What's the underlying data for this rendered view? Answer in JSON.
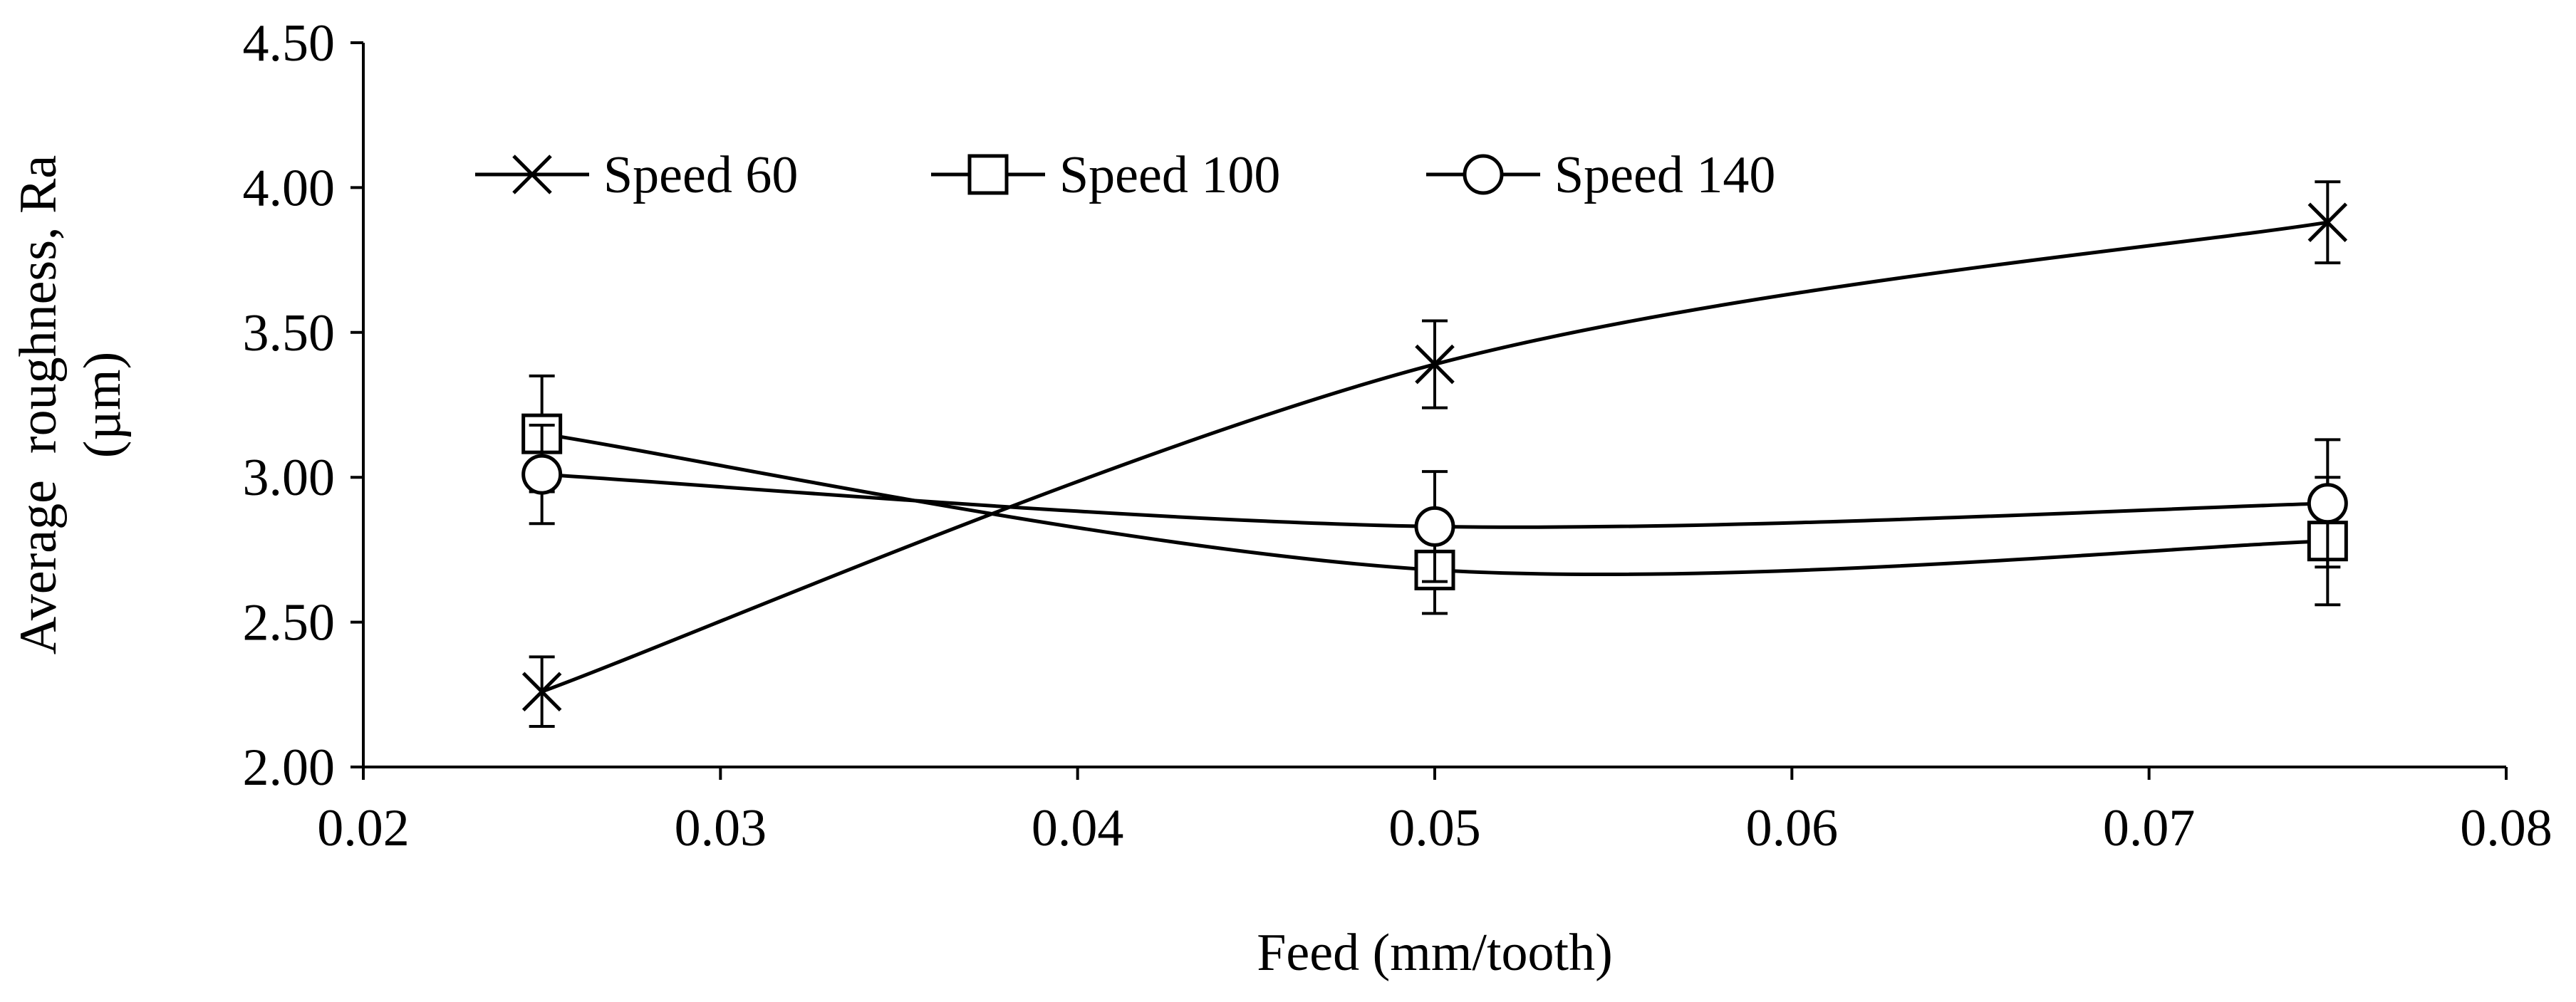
{
  "chart_data": {
    "type": "line",
    "title": "",
    "xlabel": "Feed (mm/tooth)",
    "ylabel_lines": [
      "Average  roughness, Ra",
      "(µm)"
    ],
    "xlim": [
      0.02,
      0.08
    ],
    "ylim": [
      2.0,
      4.5
    ],
    "x_ticks": [
      0.02,
      0.03,
      0.04,
      0.05,
      0.06,
      0.07,
      0.08
    ],
    "x_tick_labels": [
      "0.02",
      "0.03",
      "0.04",
      "0.05",
      "0.06",
      "0.07",
      "0.08"
    ],
    "y_ticks": [
      2.0,
      2.5,
      3.0,
      3.5,
      4.0,
      4.5
    ],
    "y_tick_labels": [
      "2.00",
      "2.50",
      "3.00",
      "3.50",
      "4.00",
      "4.50"
    ],
    "grid": false,
    "legend_position": "top-left, horizontal",
    "series": [
      {
        "name": "Speed 60",
        "marker": "x",
        "x": [
          0.025,
          0.05,
          0.075
        ],
        "values": [
          2.26,
          3.39,
          3.88
        ],
        "error": [
          0.12,
          0.15,
          0.14
        ]
      },
      {
        "name": "Speed 100",
        "marker": "square",
        "x": [
          0.025,
          0.05,
          0.075
        ],
        "values": [
          3.15,
          2.68,
          2.78
        ],
        "error": [
          0.2,
          0.15,
          0.22
        ]
      },
      {
        "name": "Speed 140",
        "marker": "circle",
        "x": [
          0.025,
          0.05,
          0.075
        ],
        "values": [
          3.01,
          2.83,
          2.91
        ],
        "error": [
          0.17,
          0.19,
          0.22
        ]
      }
    ],
    "colors": {
      "line": "#000000",
      "background": "#ffffff"
    }
  }
}
